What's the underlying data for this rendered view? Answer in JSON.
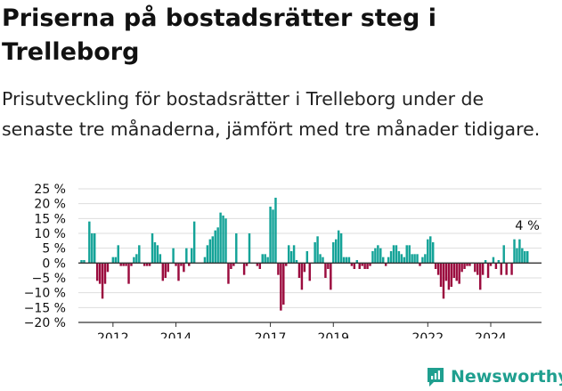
{
  "title": "Priserna på bostadsrätter steg i Trelleborg",
  "subtitle": "Prisutveckling för bostadsrätter i Trelleborg under de senaste tre månaderna, jämfört med tre månader tidigare.",
  "brand": "Newsworthy",
  "colors": {
    "positive": "#14a398",
    "negative": "#9b0c3e",
    "grid": "#dddddd",
    "axis": "#333333",
    "text": "#111111",
    "brand": "#1f9f8f"
  },
  "chart_data": {
    "type": "bar",
    "x_start": "2011-01",
    "ylim": [
      -20,
      25
    ],
    "y_ticks": [
      25,
      20,
      15,
      10,
      5,
      0,
      -5,
      -10,
      -15,
      -20
    ],
    "y_tick_labels": [
      "25 %",
      "20 %",
      "15 %",
      "10 %",
      "5 %",
      "0 %",
      "−5 %",
      "−10 %",
      "−15 %",
      "−20 %"
    ],
    "x_ticks": [
      {
        "label": "2012",
        "month": "2012-01"
      },
      {
        "label": "2014",
        "month": "2014-01"
      },
      {
        "label": "2017",
        "month": "2017-01"
      },
      {
        "label": "2019",
        "month": "2019-01"
      },
      {
        "label": "2022",
        "month": "2022-01"
      },
      {
        "label": "2024",
        "month": "2024-01"
      }
    ],
    "last_value_label": "4 %",
    "grid": true,
    "values": [
      1,
      1,
      0,
      14,
      10,
      10,
      -6,
      -7,
      -12,
      -7,
      -3,
      0,
      2,
      2,
      6,
      -1,
      -1,
      -1,
      -7,
      -1,
      2,
      3,
      6,
      0,
      -1,
      -1,
      -1,
      10,
      7,
      6,
      3,
      -6,
      -5,
      -3,
      0,
      5,
      -1,
      -6,
      -1,
      -3,
      5,
      -1,
      5,
      14,
      0,
      0,
      0,
      2,
      6,
      8,
      9,
      11,
      12,
      17,
      16,
      15,
      -7,
      -2,
      -1,
      10,
      0,
      0,
      -4,
      -1,
      10,
      0,
      0,
      -1,
      -2,
      3,
      3,
      2,
      19,
      18,
      22,
      -4,
      -16,
      -14,
      -1,
      6,
      4,
      6,
      1,
      -5,
      -9,
      -3,
      4,
      -6,
      0,
      7,
      9,
      3,
      2,
      -5,
      -2,
      -9,
      7,
      8,
      11,
      10,
      2,
      2,
      2,
      -1,
      -2,
      1,
      -2,
      -1,
      -2,
      -2,
      -1,
      4,
      5,
      6,
      5,
      2,
      -1,
      2,
      4,
      6,
      6,
      4,
      3,
      2,
      6,
      6,
      3,
      3,
      3,
      -1,
      2,
      3,
      8,
      9,
      7,
      -2,
      -4,
      -8,
      -12,
      -6,
      -9,
      -8,
      -5,
      -6,
      -7,
      -3,
      -2,
      -1,
      -1,
      0,
      -3,
      -4,
      -9,
      -4,
      1,
      -5,
      -1,
      2,
      -2,
      1,
      -4,
      6,
      -4,
      0,
      -4,
      8,
      5,
      8,
      5,
      4,
      4
    ]
  }
}
